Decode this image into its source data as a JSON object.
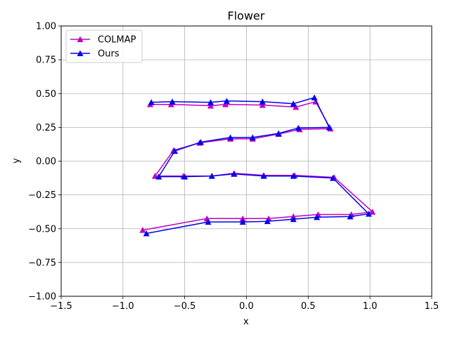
{
  "chart_data": {
    "type": "line",
    "title": "Flower",
    "xlabel": "x",
    "ylabel": "y",
    "xlim": [
      -1.5,
      1.5
    ],
    "ylim": [
      -1.0,
      1.0
    ],
    "xticks": [
      "−1.5",
      "−1.0",
      "−0.5",
      "0.0",
      "0.5",
      "1.0",
      "1.5"
    ],
    "yticks": [
      "−1.00",
      "−0.75",
      "−0.50",
      "−0.25",
      "0.00",
      "0.25",
      "0.50",
      "0.75",
      "1.00"
    ],
    "grid": true,
    "legend_position": "top-left",
    "series": [
      {
        "name": "COLMAP",
        "color": "#bf00bf",
        "marker": "triangle",
        "points": [
          [
            -0.78,
            0.42
          ],
          [
            -0.61,
            0.42
          ],
          [
            -0.29,
            0.41
          ],
          [
            -0.17,
            0.42
          ],
          [
            0.13,
            0.415
          ],
          [
            0.4,
            0.4
          ],
          [
            0.56,
            0.44
          ],
          [
            0.68,
            0.24
          ],
          [
            0.43,
            0.235
          ],
          [
            0.26,
            0.2
          ],
          [
            0.05,
            0.165
          ],
          [
            -0.13,
            0.165
          ],
          [
            -0.38,
            0.135
          ],
          [
            -0.59,
            0.08
          ],
          [
            -0.74,
            -0.11
          ],
          [
            -0.51,
            -0.11
          ],
          [
            -0.28,
            -0.11
          ],
          [
            -0.1,
            -0.09
          ],
          [
            0.14,
            -0.105
          ],
          [
            0.39,
            -0.105
          ],
          [
            0.71,
            -0.12
          ],
          [
            1.02,
            -0.375
          ],
          [
            0.85,
            -0.395
          ],
          [
            0.58,
            -0.395
          ],
          [
            0.38,
            -0.41
          ],
          [
            0.18,
            -0.425
          ],
          [
            -0.03,
            -0.425
          ],
          [
            -0.32,
            -0.425
          ],
          [
            -0.84,
            -0.51
          ]
        ]
      },
      {
        "name": "Ours",
        "color": "#0000ee",
        "marker": "triangle",
        "points": [
          [
            -0.77,
            0.435
          ],
          [
            -0.6,
            0.44
          ],
          [
            -0.29,
            0.435
          ],
          [
            -0.16,
            0.445
          ],
          [
            0.13,
            0.44
          ],
          [
            0.38,
            0.425
          ],
          [
            0.55,
            0.47
          ],
          [
            0.67,
            0.25
          ],
          [
            0.42,
            0.245
          ],
          [
            0.26,
            0.205
          ],
          [
            0.05,
            0.175
          ],
          [
            -0.13,
            0.175
          ],
          [
            -0.37,
            0.14
          ],
          [
            -0.58,
            0.075
          ],
          [
            -0.71,
            -0.115
          ],
          [
            -0.5,
            -0.115
          ],
          [
            -0.28,
            -0.11
          ],
          [
            -0.1,
            -0.095
          ],
          [
            0.14,
            -0.11
          ],
          [
            0.38,
            -0.11
          ],
          [
            0.7,
            -0.125
          ],
          [
            0.99,
            -0.39
          ],
          [
            0.84,
            -0.41
          ],
          [
            0.57,
            -0.415
          ],
          [
            0.38,
            -0.43
          ],
          [
            0.17,
            -0.445
          ],
          [
            -0.03,
            -0.45
          ],
          [
            -0.31,
            -0.45
          ],
          [
            -0.81,
            -0.535
          ]
        ]
      }
    ]
  }
}
